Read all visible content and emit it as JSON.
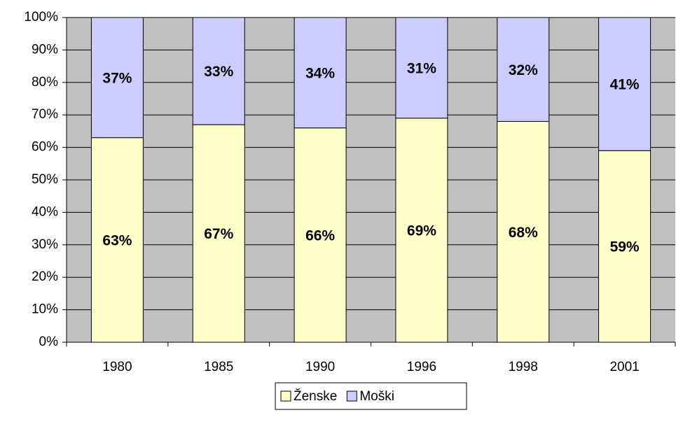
{
  "chart_data": {
    "type": "stacked_bar",
    "categories": [
      "1980",
      "1985",
      "1990",
      "1996",
      "1998",
      "2001"
    ],
    "series": [
      {
        "name": "Ženske",
        "color": "#ffffcc",
        "values": [
          63,
          67,
          66,
          69,
          68,
          59
        ],
        "value_labels": [
          "63%",
          "67%",
          "66%",
          "69%",
          "68%",
          "59%"
        ]
      },
      {
        "name": "Moški",
        "color": "#ccccff",
        "values": [
          37,
          33,
          34,
          31,
          32,
          41
        ],
        "value_labels": [
          "37%",
          "33%",
          "34%",
          "31%",
          "32%",
          "41%"
        ]
      }
    ],
    "ylim": [
      0,
      100
    ],
    "yticks": [
      {
        "value": 0,
        "label": "0%"
      },
      {
        "value": 10,
        "label": "10%"
      },
      {
        "value": 20,
        "label": "20%"
      },
      {
        "value": 30,
        "label": "30%"
      },
      {
        "value": 40,
        "label": "40%"
      },
      {
        "value": 50,
        "label": "50%"
      },
      {
        "value": 60,
        "label": "60%"
      },
      {
        "value": 70,
        "label": "70%"
      },
      {
        "value": 80,
        "label": "80%"
      },
      {
        "value": 90,
        "label": "90%"
      },
      {
        "value": 100,
        "label": "100%"
      }
    ],
    "grid": true,
    "plot_background": "#c0c0c0",
    "legend": "bottom"
  }
}
